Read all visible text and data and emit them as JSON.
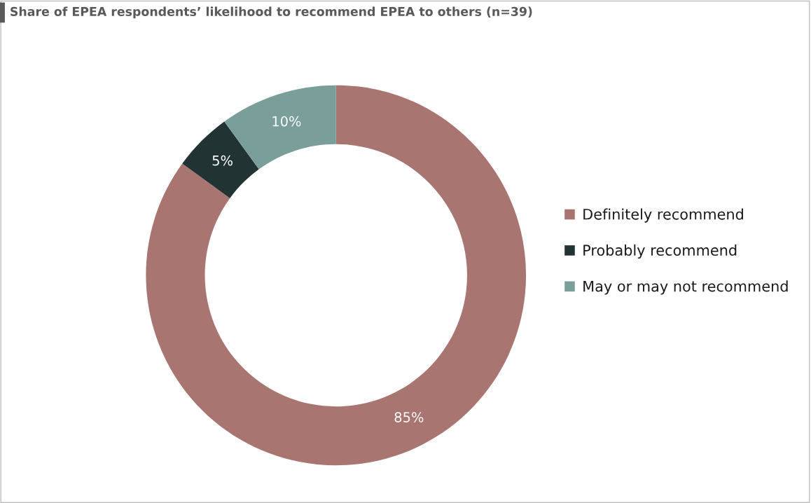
{
  "chart_data": {
    "type": "donut",
    "title": "Share of EPEA respondents’ likelihood to recommend EPEA to others (n=39)",
    "categories": [
      "Definitely recommend",
      "Probably recommend",
      "May or may not recommend"
    ],
    "values": [
      85,
      5,
      10
    ],
    "colors": [
      "#a87571",
      "#223333",
      "#7a9e9a"
    ],
    "value_labels": [
      "85%",
      "5%",
      "10%"
    ],
    "legend": "right"
  }
}
